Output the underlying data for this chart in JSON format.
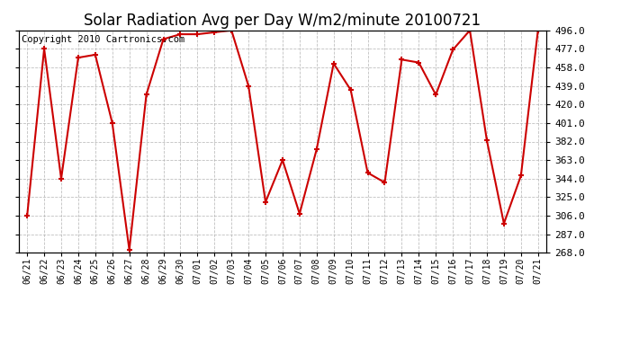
{
  "title": "Solar Radiation Avg per Day W/m2/minute 20100721",
  "copyright_text": "Copyright 2010 Cartronics.com",
  "dates": [
    "06/21",
    "06/22",
    "06/23",
    "06/24",
    "06/25",
    "06/26",
    "06/27",
    "06/28",
    "06/29",
    "06/30",
    "07/01",
    "07/02",
    "07/03",
    "07/04",
    "07/05",
    "07/06",
    "07/07",
    "07/08",
    "07/09",
    "07/10",
    "07/11",
    "07/12",
    "07/13",
    "07/14",
    "07/15",
    "07/16",
    "07/17",
    "07/18",
    "07/19",
    "07/20",
    "07/21"
  ],
  "values": [
    306.0,
    477.0,
    344.0,
    468.0,
    471.0,
    401.0,
    271.0,
    430.0,
    487.0,
    492.0,
    492.0,
    494.0,
    496.0,
    439.0,
    320.0,
    363.0,
    308.0,
    374.0,
    462.0,
    435.0,
    350.0,
    340.0,
    466.0,
    463.0,
    430.0,
    476.0,
    496.0,
    383.0,
    298.0,
    347.0,
    496.0
  ],
  "ylim": [
    268.0,
    496.0
  ],
  "yticks": [
    268.0,
    287.0,
    306.0,
    325.0,
    344.0,
    363.0,
    382.0,
    401.0,
    420.0,
    439.0,
    458.0,
    477.0,
    496.0
  ],
  "line_color": "#cc0000",
  "marker_color": "#cc0000",
  "bg_color": "#ffffff",
  "plot_bg_color": "#ffffff",
  "grid_color": "#b0b0b0",
  "title_fontsize": 12,
  "copyright_fontsize": 7.5
}
